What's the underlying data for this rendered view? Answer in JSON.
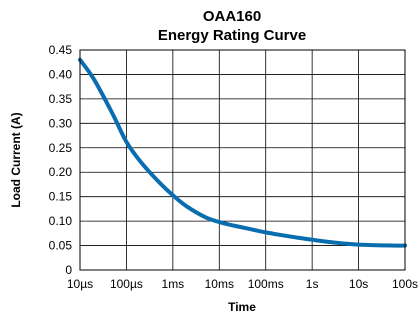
{
  "chart_data": {
    "type": "line",
    "title": "OAA160",
    "subtitle": "Energy Rating Curve",
    "xlabel": "Time",
    "ylabel": "Load Current (A)",
    "x_scale": "log",
    "x_ticks": [
      {
        "value": 1e-05,
        "label": "10µs"
      },
      {
        "value": 0.0001,
        "label": "100µs"
      },
      {
        "value": 0.001,
        "label": "1ms"
      },
      {
        "value": 0.01,
        "label": "10ms"
      },
      {
        "value": 0.1,
        "label": "100ms"
      },
      {
        "value": 1,
        "label": "1s"
      },
      {
        "value": 10,
        "label": "10s"
      },
      {
        "value": 100,
        "label": "100s"
      }
    ],
    "y_ticks": [
      {
        "value": 0,
        "label": "0"
      },
      {
        "value": 0.05,
        "label": "0.05"
      },
      {
        "value": 0.1,
        "label": "0.10"
      },
      {
        "value": 0.15,
        "label": "0.15"
      },
      {
        "value": 0.2,
        "label": "0.20"
      },
      {
        "value": 0.25,
        "label": "0.25"
      },
      {
        "value": 0.3,
        "label": "0.30"
      },
      {
        "value": 0.35,
        "label": "0.35"
      },
      {
        "value": 0.4,
        "label": "0.40"
      },
      {
        "value": 0.45,
        "label": "0.45"
      }
    ],
    "xlim": [
      1e-05,
      100
    ],
    "ylim": [
      0,
      0.45
    ],
    "grid": true,
    "legend": "none",
    "series": [
      {
        "color": "#0a6db0",
        "x": [
          1e-05,
          2e-05,
          5e-05,
          0.0001,
          0.0002,
          0.0005,
          0.001,
          0.002,
          0.005,
          0.01,
          0.02,
          0.05,
          0.1,
          0.2,
          0.5,
          1,
          2,
          5,
          10,
          20,
          50,
          100
        ],
        "y": [
          0.43,
          0.39,
          0.32,
          0.262,
          0.222,
          0.18,
          0.153,
          0.13,
          0.108,
          0.098,
          0.091,
          0.083,
          0.077,
          0.072,
          0.066,
          0.062,
          0.058,
          0.054,
          0.052,
          0.051,
          0.05,
          0.05
        ]
      }
    ]
  }
}
